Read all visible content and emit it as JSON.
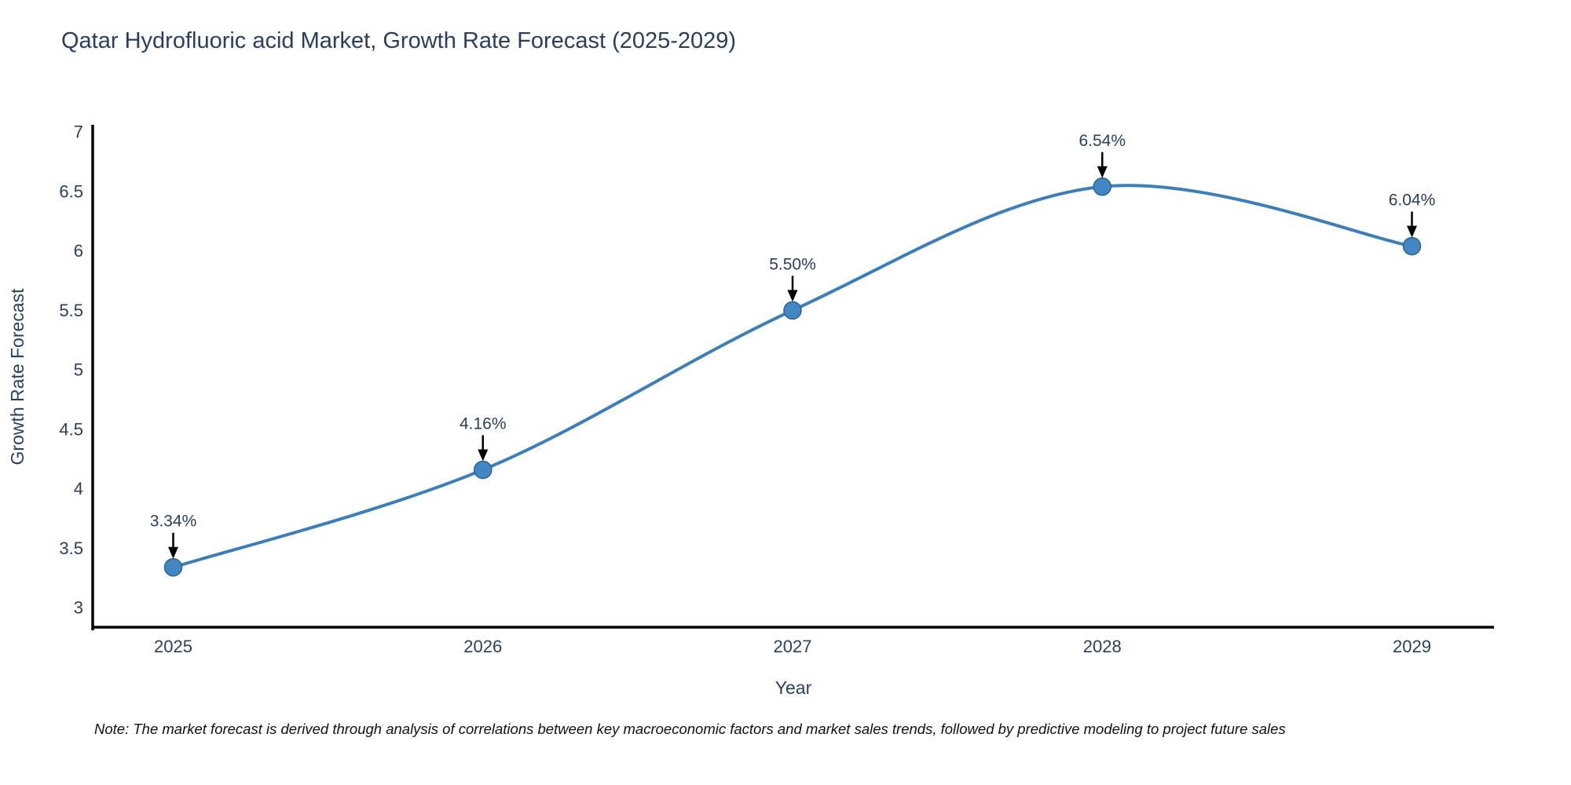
{
  "title": "Qatar Hydrofluoric acid Market, Growth Rate Forecast (2025-2029)",
  "footnote": "Note: The market forecast is derived through analysis of correlations between key macroeconomic factors and market sales trends, followed by predictive modeling to project future sales",
  "chart_data": {
    "type": "line",
    "title": "Qatar Hydrofluoric acid Market, Growth Rate Forecast (2025-2029)",
    "xlabel": "Year",
    "ylabel": "Growth Rate Forecast",
    "categories": [
      2025,
      2026,
      2027,
      2028,
      2029
    ],
    "series": [
      {
        "name": "Growth Rate Forecast",
        "values": [
          3.34,
          4.16,
          5.5,
          6.54,
          6.04
        ]
      }
    ],
    "point_labels": [
      "3.34%",
      "4.16%",
      "5.50%",
      "6.54%",
      "6.04%"
    ],
    "x_tick_labels": [
      "2025",
      "2026",
      "2027",
      "2028",
      "2029"
    ],
    "y_ticks": [
      3,
      3.5,
      4,
      4.5,
      5,
      5.5,
      6,
      6.5,
      7
    ],
    "y_tick_labels": [
      "3",
      "3.5",
      "4",
      "4.5",
      "5",
      "5.5",
      "6",
      "6.5",
      "7"
    ],
    "xlim": [
      2024.74,
      2029.26
    ],
    "ylim": [
      2.83,
      7.06
    ],
    "line_shape": "spline",
    "grid": false,
    "legend": "none",
    "colors": {
      "line": "#3d7eb8",
      "marker_fill": "#4286c3",
      "marker_edge": "#2a648f",
      "axis_line": "#000000",
      "tick_text": "#2a3f5f",
      "annotation_text": "#2a3f5f",
      "annotation_arrow": "#000000",
      "title_text": "#2a3f5f",
      "background": "#ffffff"
    }
  }
}
